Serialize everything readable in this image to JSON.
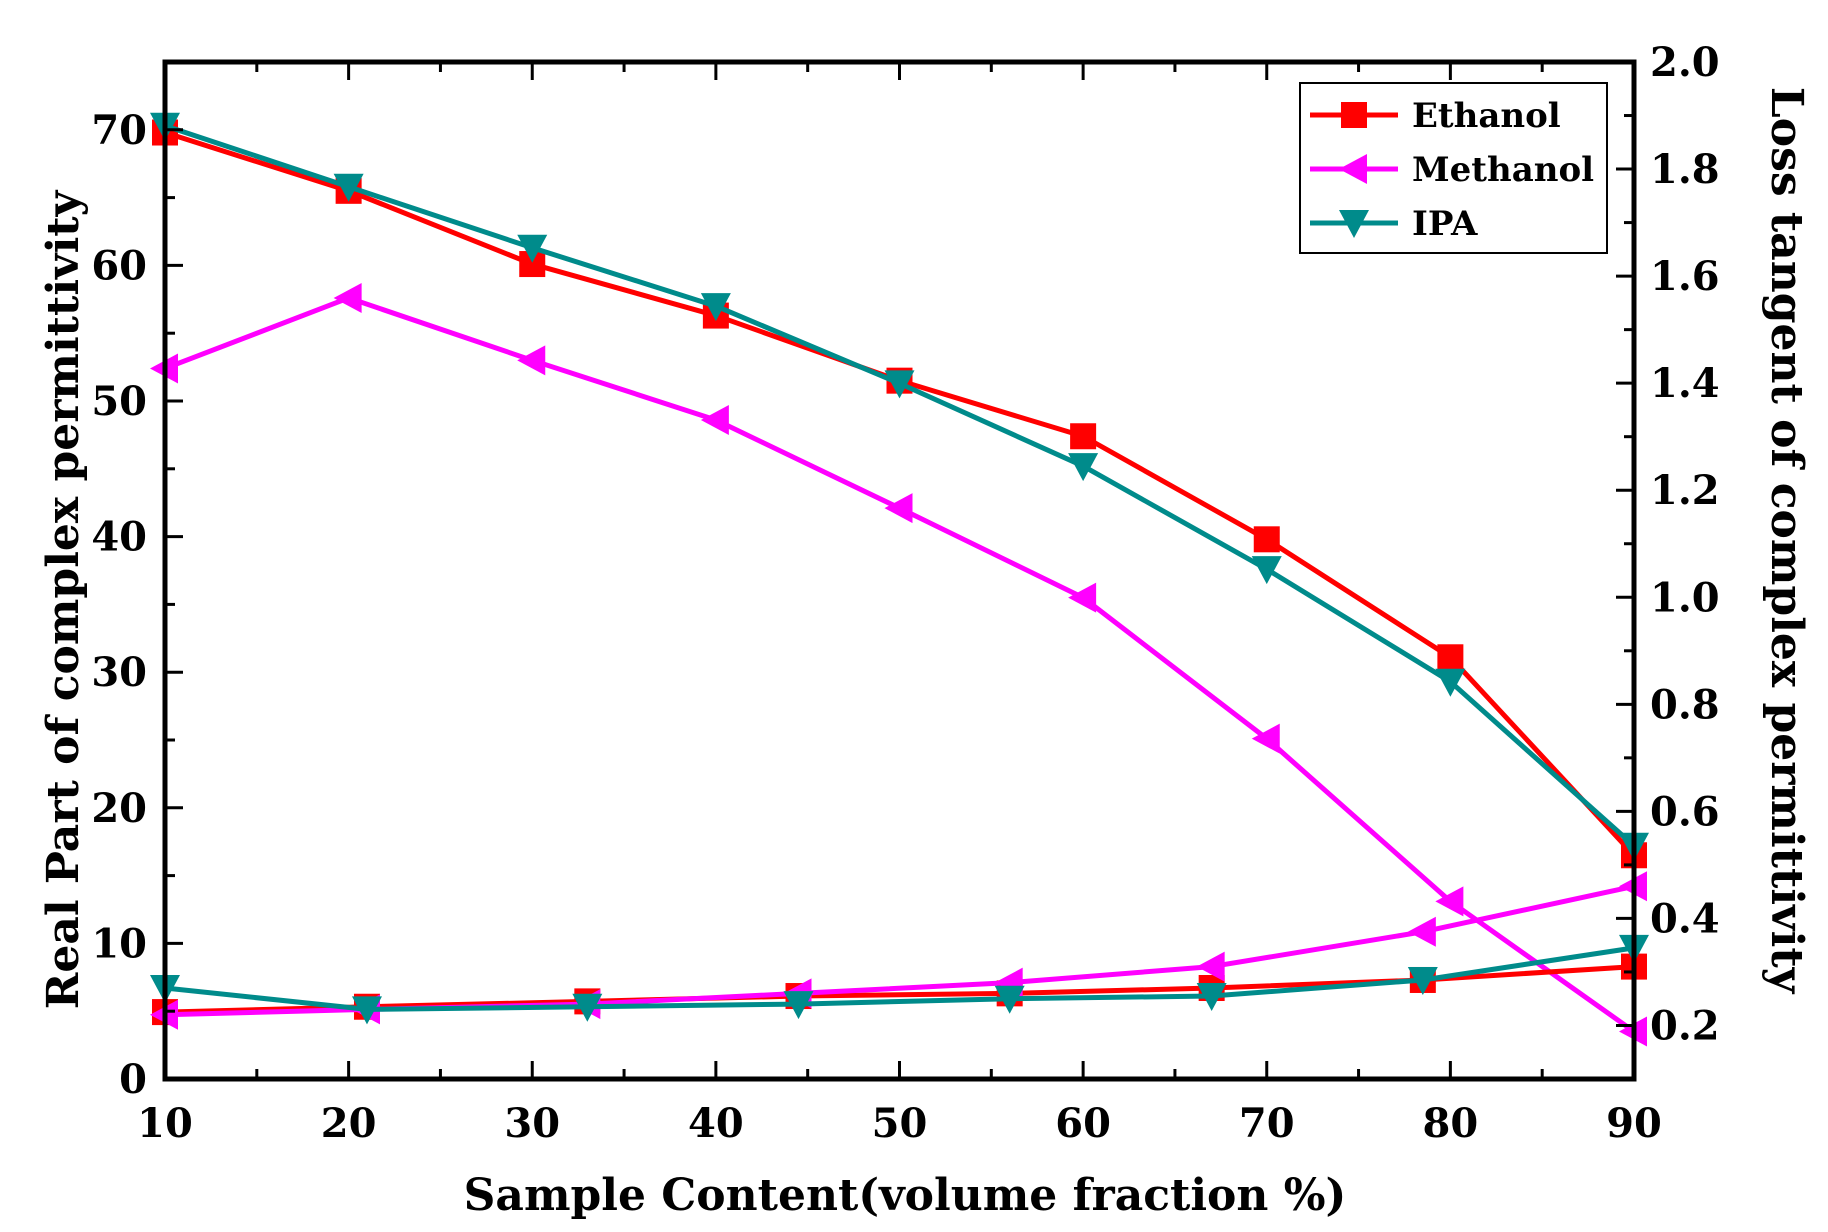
{
  "chart_data": {
    "type": "line",
    "xlabel": "Sample Content(volume fraction %)",
    "ylabel_left": "Real Part of complex permittivity",
    "ylabel_right": "Loss tangent of complex permittivity",
    "xlim": [
      10,
      90
    ],
    "ylim_left": [
      0,
      75
    ],
    "ylim_right": [
      0.1,
      2.0
    ],
    "x_ticks": [
      10,
      20,
      30,
      40,
      50,
      60,
      70,
      80,
      90
    ],
    "y_left_ticks": [
      0,
      10,
      20,
      30,
      40,
      50,
      60,
      70
    ],
    "y_right_ticks": [
      "0.2",
      "0.4",
      "0.6",
      "0.8",
      "1.0",
      "1.2",
      "1.4",
      "1.6",
      "1.8",
      "2.0"
    ],
    "legend_position": "top-right",
    "series": [
      {
        "name": "Ethanol",
        "color": "#ff0000",
        "marker": "square",
        "axis": "left",
        "x": [
          10,
          20,
          30,
          40,
          50,
          60,
          70,
          80,
          90
        ],
        "values": [
          69.8,
          65.5,
          60.1,
          56.3,
          51.5,
          47.4,
          39.8,
          31.1,
          16.5
        ]
      },
      {
        "name": "Methanol",
        "color": "#ff00ff",
        "marker": "triangle-left",
        "axis": "left",
        "x": [
          10,
          20,
          30,
          40,
          50,
          60,
          70,
          80,
          90
        ],
        "values": [
          52.4,
          57.6,
          53.0,
          48.6,
          42.1,
          35.5,
          25.1,
          13.1,
          3.5
        ]
      },
      {
        "name": "IPA",
        "color": "#008b8b",
        "marker": "triangle-down",
        "axis": "left",
        "x": [
          10,
          20,
          30,
          40,
          50,
          60,
          70,
          80,
          90
        ],
        "values": [
          70.3,
          65.8,
          61.3,
          57.0,
          51.3,
          45.2,
          37.6,
          29.3,
          17.2
        ]
      },
      {
        "name": "Ethanol",
        "color": "#ff0000",
        "marker": "square",
        "axis": "right",
        "x": [
          10,
          21,
          33,
          44.5,
          56,
          67,
          78.5,
          90
        ],
        "values": [
          0.225,
          0.235,
          0.245,
          0.255,
          0.26,
          0.27,
          0.285,
          0.31
        ]
      },
      {
        "name": "Methanol",
        "color": "#ff00ff",
        "marker": "triangle-left",
        "axis": "right",
        "x": [
          10,
          21,
          33,
          44.5,
          56,
          67,
          78.5,
          90
        ],
        "values": [
          0.22,
          0.23,
          0.24,
          0.26,
          0.28,
          0.31,
          0.375,
          0.46
        ]
      },
      {
        "name": "IPA",
        "color": "#008b8b",
        "marker": "triangle-down",
        "axis": "right",
        "x": [
          10,
          21,
          33,
          44.5,
          56,
          67,
          78.5,
          90
        ],
        "values": [
          0.27,
          0.23,
          0.235,
          0.24,
          0.25,
          0.255,
          0.285,
          0.345
        ]
      }
    ],
    "legend": [
      {
        "label": "Ethanol",
        "color": "#ff0000",
        "marker": "square"
      },
      {
        "label": "Methanol",
        "color": "#ff00ff",
        "marker": "triangle-left"
      },
      {
        "label": "IPA",
        "color": "#008b8b",
        "marker": "triangle-down"
      }
    ]
  }
}
